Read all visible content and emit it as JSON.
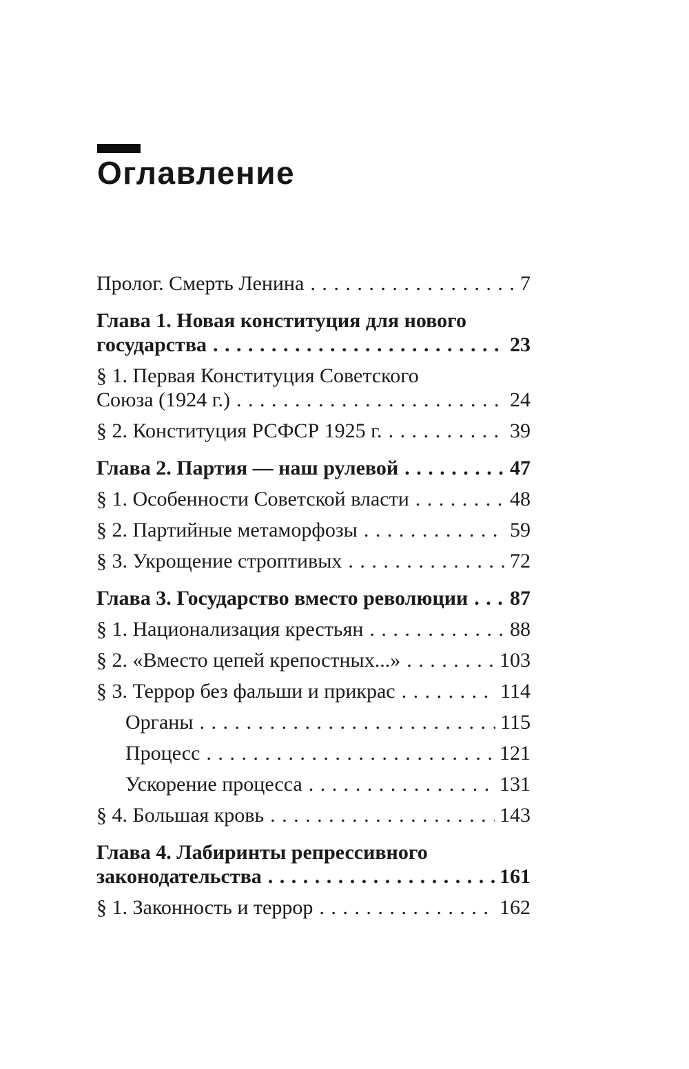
{
  "header": {
    "title": "Оглавление"
  },
  "colors": {
    "background": "#ffffff",
    "text": "#1b1b1b",
    "accent_bar": "#0d0d0d"
  },
  "toc": {
    "entries": [
      {
        "line1": "Пролог. Смерть Ленина",
        "page": "7"
      },
      {
        "line1": "Глава 1. Новая конституция для нового",
        "line2": "государства",
        "page": "23",
        "bold": true
      },
      {
        "line1": "§ 1. Первая Конституция Советского",
        "line2": "Союза (1924 г.)",
        "page": "24"
      },
      {
        "line1": "§ 2. Конституция РСФСР 1925 г.",
        "page": "39"
      },
      {
        "line1": "Глава 2. Партия — наш рулевой",
        "page": "47",
        "bold": true
      },
      {
        "line1": "§ 1. Особенности Советской власти",
        "page": "48"
      },
      {
        "line1": "§ 2. Партийные метаморфозы",
        "page": "59"
      },
      {
        "line1": "§ 3. Укрощение строптивых",
        "page": "72"
      },
      {
        "line1": "Глава 3. Государство вместо революции",
        "page": "87",
        "bold": true
      },
      {
        "line1": "§ 1. Национализация крестьян",
        "page": "88"
      },
      {
        "line1": "§ 2. «Вместо цепей крепостных...»",
        "page": "103"
      },
      {
        "line1": "§ 3. Террор без фальши и прикрас",
        "page": "114"
      },
      {
        "line1": "Органы",
        "page": "115",
        "indent": true
      },
      {
        "line1": "Процесс",
        "page": "121",
        "indent": true
      },
      {
        "line1": "Ускорение процесса",
        "page": "131",
        "indent": true
      },
      {
        "line1": "§ 4. Большая кровь",
        "page": "143"
      },
      {
        "line1": "Глава 4. Лабиринты репрессивного",
        "line2": "законодательства",
        "page": "161",
        "bold": true
      },
      {
        "line1": "§ 1. Законность и террор",
        "page": "162"
      }
    ]
  }
}
